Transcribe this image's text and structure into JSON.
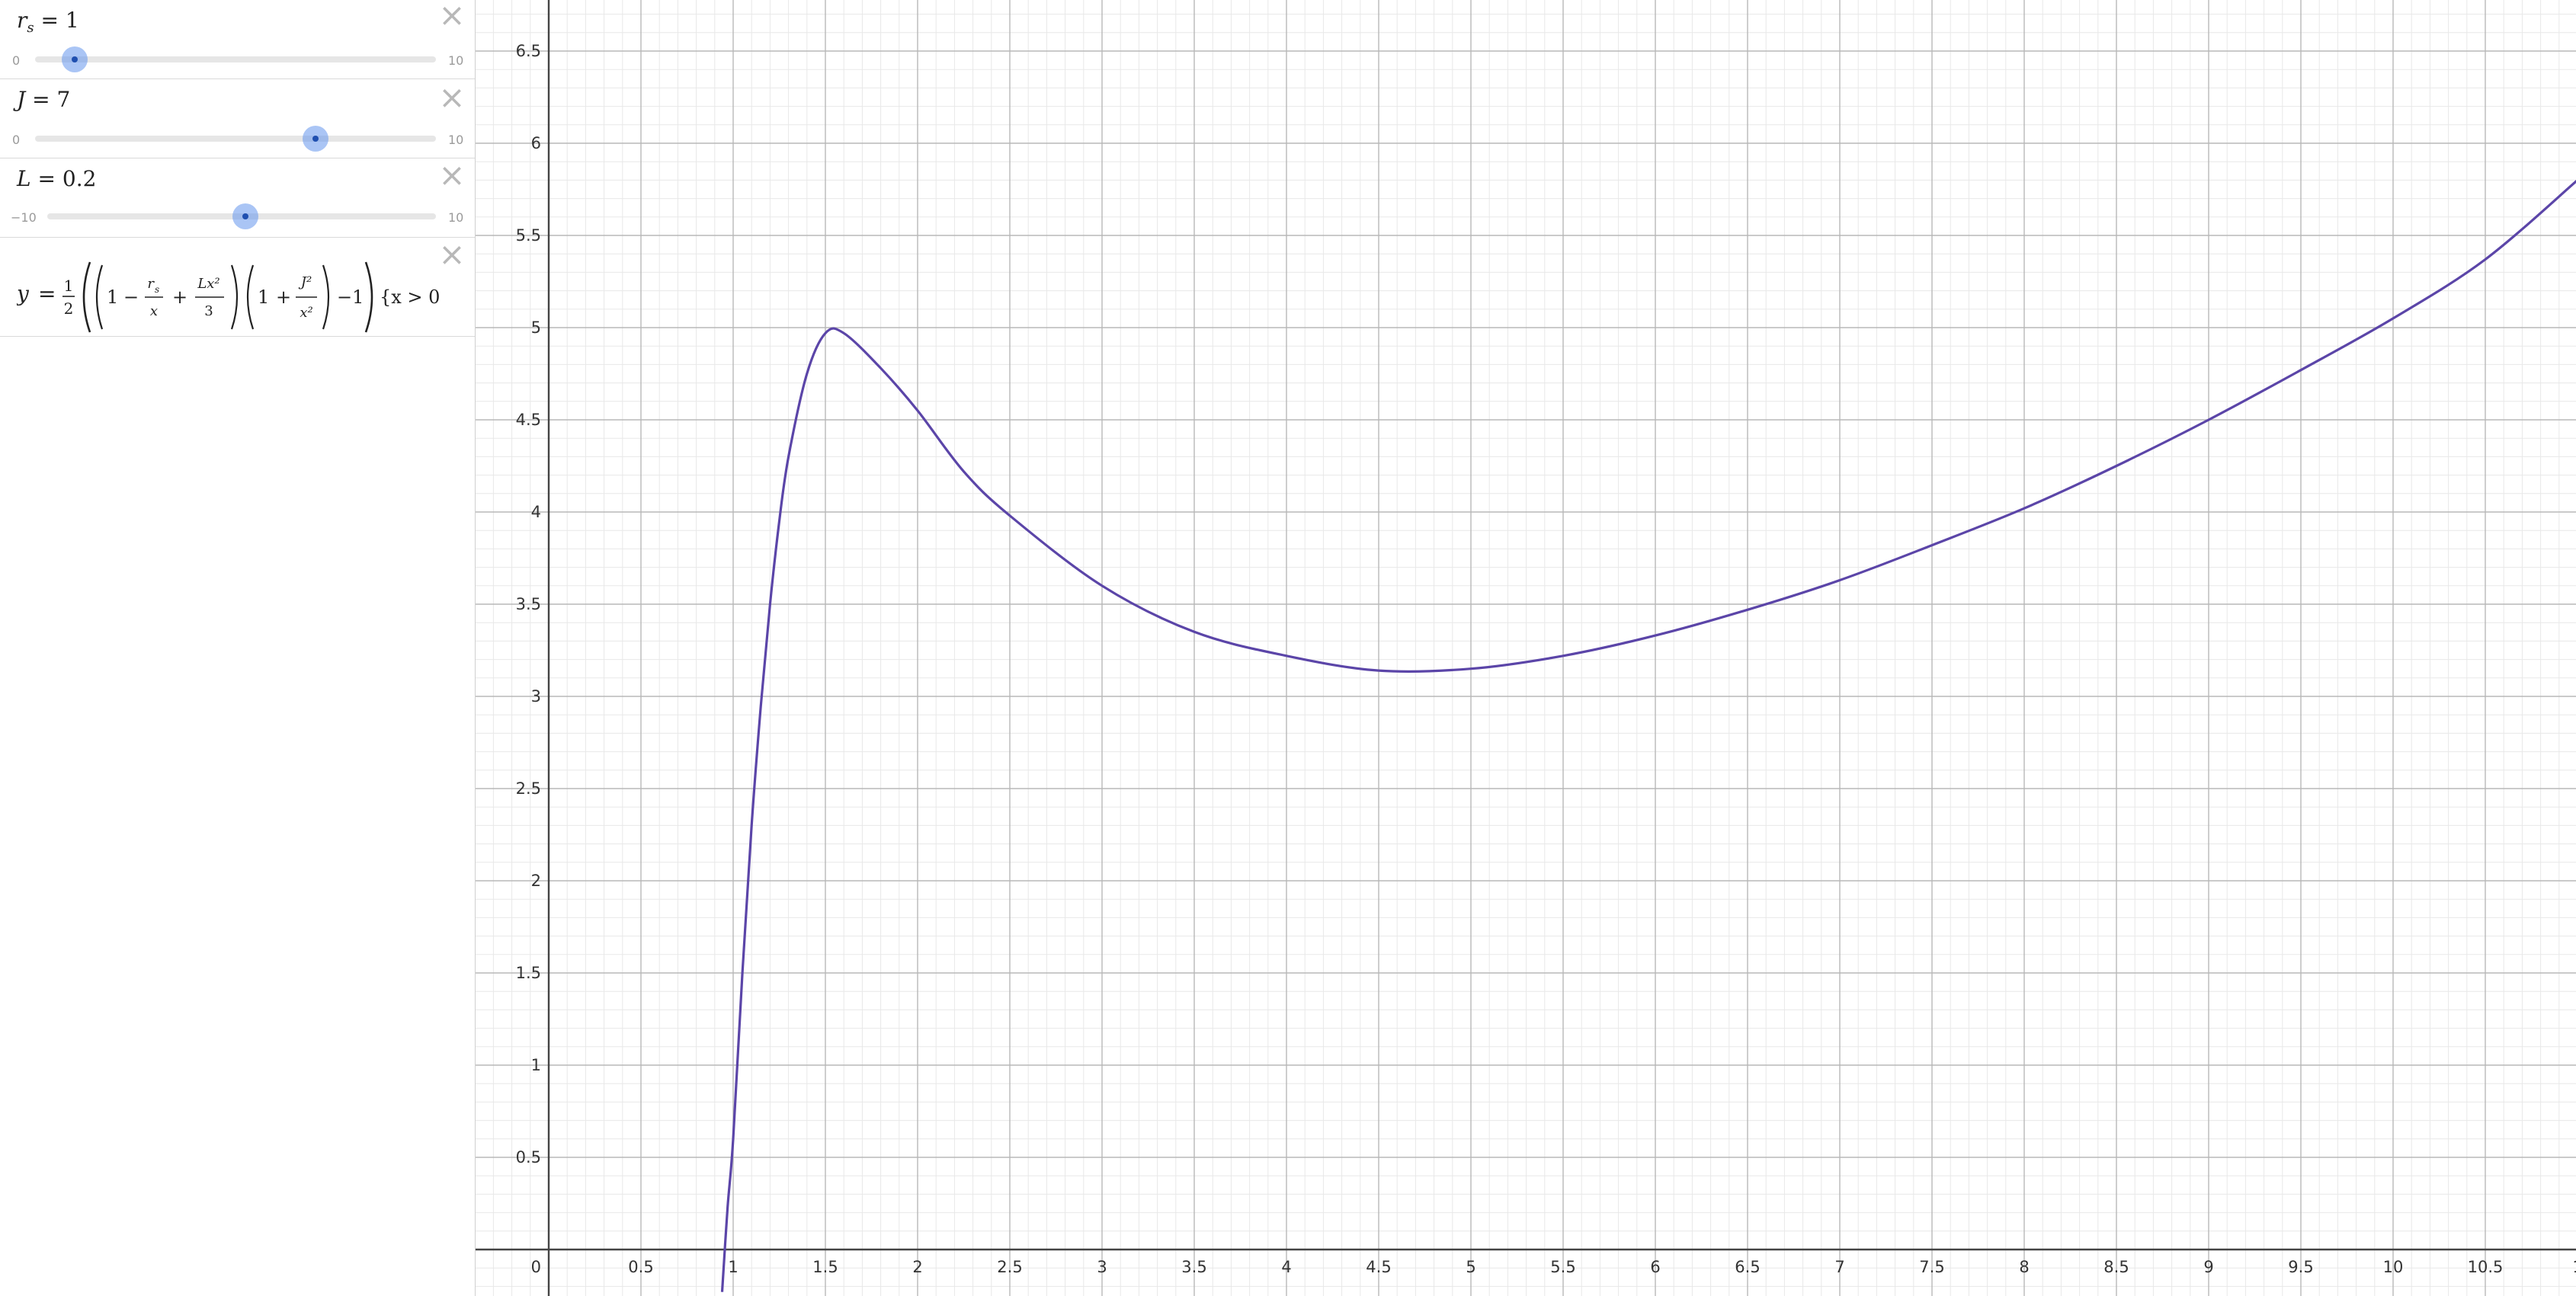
{
  "expressions": {
    "rs": {
      "name": "r",
      "sub": "s",
      "eq": "=",
      "value": "1",
      "min": "0",
      "max": "10",
      "numeric_value": 1,
      "numeric_min": 0,
      "numeric_max": 10
    },
    "J": {
      "name": "J",
      "eq": "=",
      "value": "7",
      "min": "0",
      "max": "10",
      "numeric_value": 7,
      "numeric_min": 0,
      "numeric_max": 10
    },
    "L": {
      "name": "L",
      "eq": "=",
      "value": "0.2",
      "min": "−10",
      "max": "10",
      "numeric_value": 0.2,
      "numeric_min": -10,
      "numeric_max": 10
    },
    "formula": {
      "lhs": "y",
      "eq": "=",
      "half_num": "1",
      "half_den": "2",
      "one": "1",
      "minus": "−",
      "plus": "+",
      "rs_num": "r",
      "rs_sub": "s",
      "rs_den": "x",
      "lx_num": "Lx²",
      "lx_den": "3",
      "j_num": "J²",
      "j_den": "x²",
      "tail": "−1",
      "restriction": "{x > 0"
    }
  },
  "graph": {
    "x_ticks": [
      "0",
      "0.5",
      "1",
      "1.5",
      "2",
      "2.5",
      "3",
      "3.5",
      "4",
      "4.5",
      "5",
      "5.5",
      "6",
      "6.5",
      "7",
      "7.5",
      "8",
      "8.5",
      "9",
      "9.5",
      "10",
      "10.5",
      "1"
    ],
    "y_ticks": [
      "0.5",
      "1",
      "1.5",
      "2",
      "2.5",
      "3",
      "3.5",
      "4",
      "4.5",
      "5",
      "5.5",
      "6",
      "6.5"
    ],
    "curve_color": "#5b45a8",
    "grid_major_color": "#b8b8b8",
    "grid_minor_color": "#e8e8e8",
    "axis_color": "#444444"
  },
  "chart_data": {
    "type": "line",
    "series": [
      {
        "x": [
          0.94,
          0.97,
          1.0,
          1.05,
          1.1,
          1.15,
          1.2,
          1.25,
          1.3,
          1.4,
          1.5,
          1.6,
          1.8,
          2.0,
          2.25,
          2.5,
          3.0,
          3.5,
          4.0,
          4.5,
          5.0,
          5.5,
          6.0,
          6.5,
          7.0,
          7.5,
          8.0,
          8.5,
          9.0,
          9.5,
          10.0,
          10.5,
          11.0
        ],
        "y": [
          -0.23,
          0.23,
          0.6,
          1.5,
          2.3,
          2.95,
          3.5,
          3.95,
          4.3,
          4.75,
          4.97,
          4.97,
          4.78,
          4.55,
          4.22,
          3.98,
          3.6,
          3.35,
          3.22,
          3.14,
          3.15,
          3.22,
          3.33,
          3.47,
          3.63,
          3.82,
          4.02,
          4.25,
          4.5,
          4.77,
          5.05,
          5.37,
          5.8
        ]
      }
    ],
    "xlim": [
      -0.4,
      11.0
    ],
    "ylim": [
      -0.25,
      7.0
    ],
    "grid": true
  }
}
